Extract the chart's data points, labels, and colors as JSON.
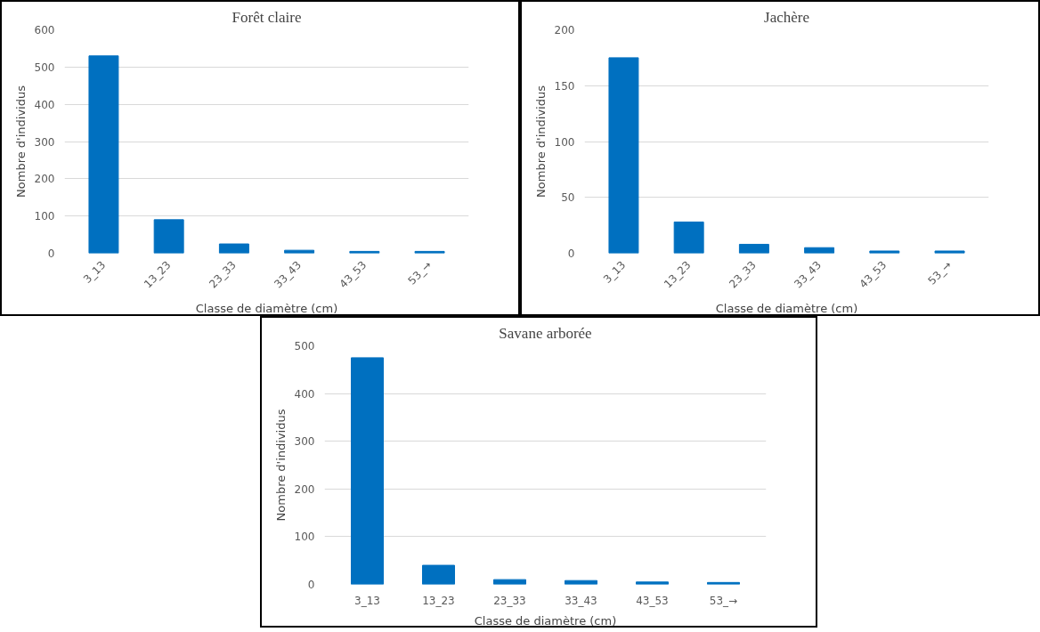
{
  "chart_data": [
    {
      "type": "bar",
      "title": "Forêt claire",
      "xlabel": "Classe de diamètre (cm)",
      "ylabel": "Nombre d'individus",
      "categories": [
        "3_13",
        "13_23",
        "23_33",
        "33_43",
        "43_53",
        "53_→"
      ],
      "values": [
        530,
        90,
        25,
        8,
        5,
        5
      ],
      "color": "#0070c0",
      "ylim": [
        0,
        600
      ],
      "yticks": [
        0,
        100,
        200,
        300,
        400,
        500,
        600
      ],
      "grid": "y"
    },
    {
      "type": "bar",
      "title": "Jachère",
      "xlabel": "Classe de diamètre (cm)",
      "ylabel": "Nombre d'individus",
      "categories": [
        "3_13",
        "13_23",
        "23_33",
        "33_43",
        "43_53",
        "53_→"
      ],
      "values": [
        175,
        28,
        8,
        5,
        2,
        2
      ],
      "color": "#0070c0",
      "ylim": [
        0,
        200
      ],
      "yticks": [
        0,
        50,
        100,
        150,
        200
      ],
      "grid": "y"
    },
    {
      "type": "bar",
      "title": "Savane arborée",
      "xlabel": "Classe de diamètre (cm)",
      "ylabel": "Nombre d'individus",
      "categories": [
        "3_13",
        "13_23",
        "23_33",
        "33_43",
        "43_53",
        "53_→"
      ],
      "values": [
        475,
        40,
        10,
        8,
        5,
        4
      ],
      "color": "#0070c0",
      "ylim": [
        0,
        500
      ],
      "yticks": [
        0,
        100,
        200,
        300,
        400,
        500
      ],
      "grid": "y"
    }
  ]
}
